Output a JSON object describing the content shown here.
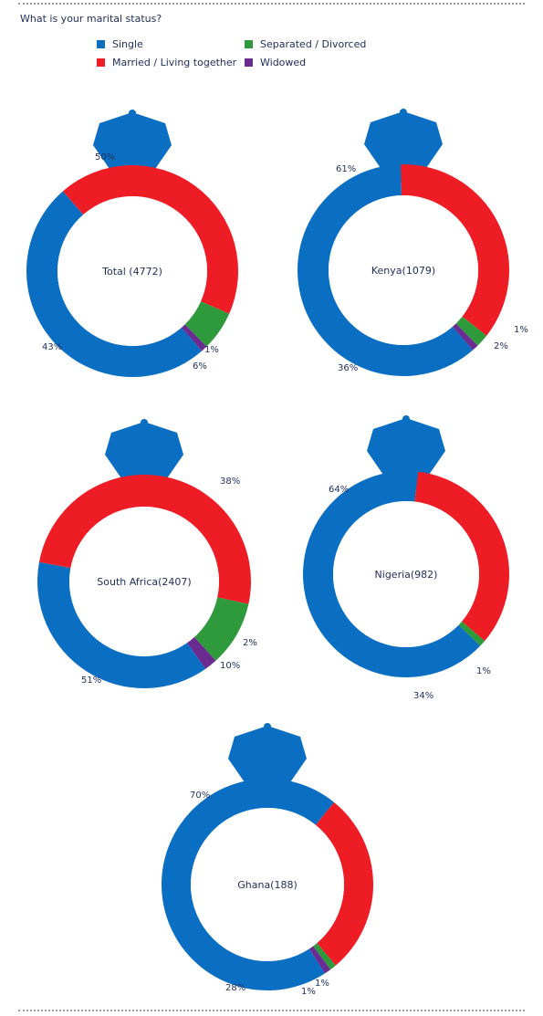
{
  "question": "What is your marital status?",
  "colors": {
    "Single": "#0a6fc2",
    "Married / Living together": "#ee1c25",
    "Separated / Divorced": "#2e9a3c",
    "Widowed": "#6a2c91"
  },
  "legend": [
    {
      "label": "Single",
      "color": "#0a6fc2"
    },
    {
      "label": "Married / Living together",
      "color": "#ee1c25"
    },
    {
      "label": "Separated / Divorced",
      "color": "#2e9a3c"
    },
    {
      "label": "Widowed",
      "color": "#6a2c91"
    }
  ],
  "chart_data": [
    {
      "type": "pie",
      "title": "Total (4772)",
      "slices": [
        {
          "name": "Single",
          "value": 50,
          "label": "50%"
        },
        {
          "name": "Married / Living together",
          "value": 43,
          "label": "43%"
        },
        {
          "name": "Separated / Divorced",
          "value": 6,
          "label": "6%"
        },
        {
          "name": "Widowed",
          "value": 1,
          "label": "1%"
        }
      ]
    },
    {
      "type": "pie",
      "title": "Kenya(1079)",
      "slices": [
        {
          "name": "Single",
          "value": 61,
          "label": "61%"
        },
        {
          "name": "Married / Living together",
          "value": 36,
          "label": "36%"
        },
        {
          "name": "Separated / Divorced",
          "value": 2,
          "label": "2%"
        },
        {
          "name": "Widowed",
          "value": 1,
          "label": "1%"
        }
      ]
    },
    {
      "type": "pie",
      "title": "South Africa(2407)",
      "slices": [
        {
          "name": "Single",
          "value": 38,
          "label": "38%"
        },
        {
          "name": "Married / Living together",
          "value": 51,
          "label": "51%"
        },
        {
          "name": "Separated / Divorced",
          "value": 10,
          "label": "10%"
        },
        {
          "name": "Widowed",
          "value": 2,
          "label": "2%"
        }
      ]
    },
    {
      "type": "pie",
      "title": "Nigeria(982)",
      "slices": [
        {
          "name": "Single",
          "value": 64,
          "label": "64%"
        },
        {
          "name": "Married / Living together",
          "value": 34,
          "label": "34%"
        },
        {
          "name": "Separated / Divorced",
          "value": 1,
          "label": "1%"
        },
        {
          "name": "Widowed",
          "value": 0,
          "label": ""
        }
      ]
    },
    {
      "type": "pie",
      "title": "Ghana(188)",
      "slices": [
        {
          "name": "Single",
          "value": 70,
          "label": "70%"
        },
        {
          "name": "Married / Living together",
          "value": 28,
          "label": "28%"
        },
        {
          "name": "Separated / Divorced",
          "value": 1,
          "label": "1%"
        },
        {
          "name": "Widowed",
          "value": 1,
          "label": "1%"
        }
      ]
    }
  ]
}
